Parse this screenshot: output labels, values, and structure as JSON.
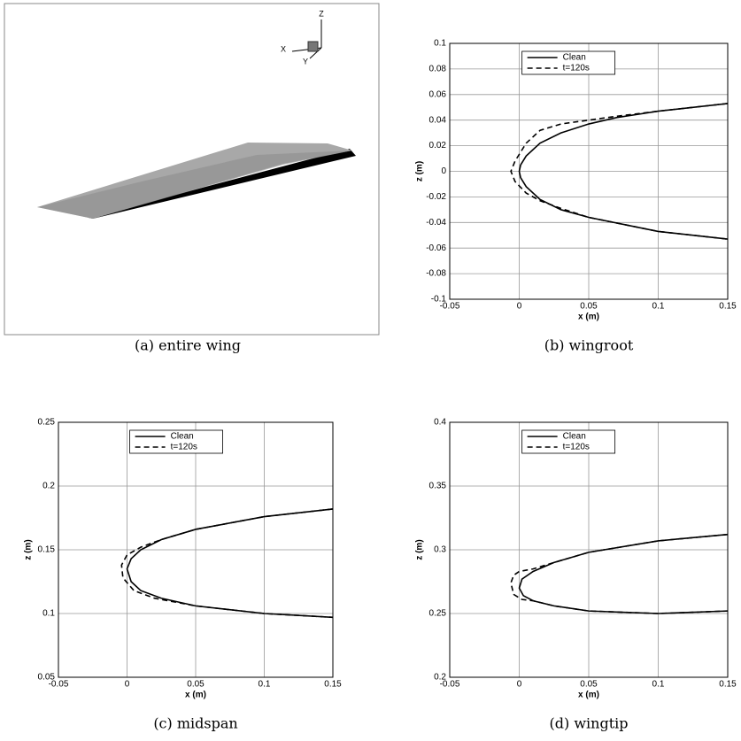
{
  "chart_data": [
    {
      "type": "render",
      "caption": "(a) entire wing",
      "triad": [
        "Z",
        "X",
        "Y"
      ]
    },
    {
      "type": "line",
      "caption": "(b) wingroot",
      "xlabel": "x (m)",
      "ylabel": "z (m)",
      "xlim": [
        -0.05,
        0.15
      ],
      "ylim": [
        -0.1,
        0.1
      ],
      "xticks": [
        -0.05,
        0,
        0.05,
        0.1,
        0.15
      ],
      "yticks": [
        -0.1,
        -0.08,
        -0.06,
        -0.04,
        -0.02,
        0,
        0.02,
        0.04,
        0.06,
        0.08,
        0.1
      ],
      "grid": true,
      "legend": "top",
      "series": [
        {
          "name": "Clean",
          "color": "#000000",
          "style": "solid",
          "x": [
            0.15,
            0.1,
            0.07,
            0.05,
            0.03,
            0.015,
            0.005,
            0.001,
            0,
            0.001,
            0.005,
            0.015,
            0.03,
            0.05,
            0.1,
            0.15
          ],
          "values": [
            0.053,
            0.047,
            0.042,
            0.037,
            0.03,
            0.022,
            0.012,
            0.005,
            0,
            -0.005,
            -0.012,
            -0.022,
            -0.03,
            -0.036,
            -0.047,
            -0.053
          ]
        },
        {
          "name": "t=120s",
          "color": "#000000",
          "style": "dashed",
          "x": [
            0.15,
            0.1,
            0.07,
            0.05,
            0.03,
            0.015,
            0.005,
            -0.003,
            -0.006,
            -0.003,
            0.005,
            0.015,
            0.03,
            0.05,
            0.1,
            0.15
          ],
          "values": [
            0.053,
            0.047,
            0.043,
            0.04,
            0.037,
            0.032,
            0.022,
            0.008,
            0,
            -0.008,
            -0.017,
            -0.023,
            -0.029,
            -0.036,
            -0.047,
            -0.053
          ]
        }
      ]
    },
    {
      "type": "line",
      "caption": "(c) midspan",
      "xlabel": "x (m)",
      "ylabel": "z (m)",
      "xlim": [
        -0.05,
        0.15
      ],
      "ylim": [
        0.05,
        0.25
      ],
      "xticks": [
        -0.05,
        0,
        0.05,
        0.1,
        0.15
      ],
      "yticks": [
        0.05,
        0.1,
        0.15,
        0.2,
        0.25
      ],
      "grid": true,
      "legend": "top",
      "series": [
        {
          "name": "Clean",
          "color": "#000000",
          "style": "solid",
          "x": [
            0.15,
            0.1,
            0.05,
            0.025,
            0.01,
            0.003,
            0,
            0.003,
            0.01,
            0.025,
            0.05,
            0.1,
            0.15
          ],
          "values": [
            0.182,
            0.176,
            0.166,
            0.158,
            0.15,
            0.143,
            0.135,
            0.125,
            0.118,
            0.112,
            0.106,
            0.1,
            0.097
          ]
        },
        {
          "name": "t=120s",
          "color": "#000000",
          "style": "dashed",
          "x": [
            0.15,
            0.1,
            0.05,
            0.025,
            0.01,
            0,
            -0.004,
            -0.003,
            0.005,
            0.02,
            0.05,
            0.1,
            0.15
          ],
          "values": [
            0.182,
            0.176,
            0.166,
            0.158,
            0.152,
            0.146,
            0.138,
            0.128,
            0.118,
            0.112,
            0.106,
            0.1,
            0.097
          ]
        }
      ]
    },
    {
      "type": "line",
      "caption": "(d) wingtip",
      "xlabel": "x (m)",
      "ylabel": "z (m)",
      "xlim": [
        -0.05,
        0.15
      ],
      "ylim": [
        0.2,
        0.4
      ],
      "xticks": [
        -0.05,
        0,
        0.05,
        0.1,
        0.15
      ],
      "yticks": [
        0.2,
        0.25,
        0.3,
        0.35,
        0.4
      ],
      "grid": true,
      "legend": "top",
      "series": [
        {
          "name": "Clean",
          "color": "#000000",
          "style": "solid",
          "x": [
            0.15,
            0.1,
            0.05,
            0.025,
            0.01,
            0.002,
            0,
            0.003,
            0.01,
            0.025,
            0.05,
            0.1,
            0.15
          ],
          "values": [
            0.312,
            0.307,
            0.298,
            0.29,
            0.283,
            0.277,
            0.27,
            0.264,
            0.26,
            0.256,
            0.252,
            0.25,
            0.252
          ]
        },
        {
          "name": "t=120s",
          "color": "#000000",
          "style": "dashed",
          "x": [
            0.15,
            0.1,
            0.05,
            0.025,
            0.01,
            0,
            -0.004,
            -0.006,
            -0.004,
            0.002,
            0.01,
            0.025,
            0.05,
            0.1,
            0.15
          ],
          "values": [
            0.312,
            0.307,
            0.298,
            0.29,
            0.285,
            0.283,
            0.28,
            0.274,
            0.265,
            0.261,
            0.26,
            0.256,
            0.252,
            0.25,
            0.252
          ]
        }
      ]
    }
  ]
}
